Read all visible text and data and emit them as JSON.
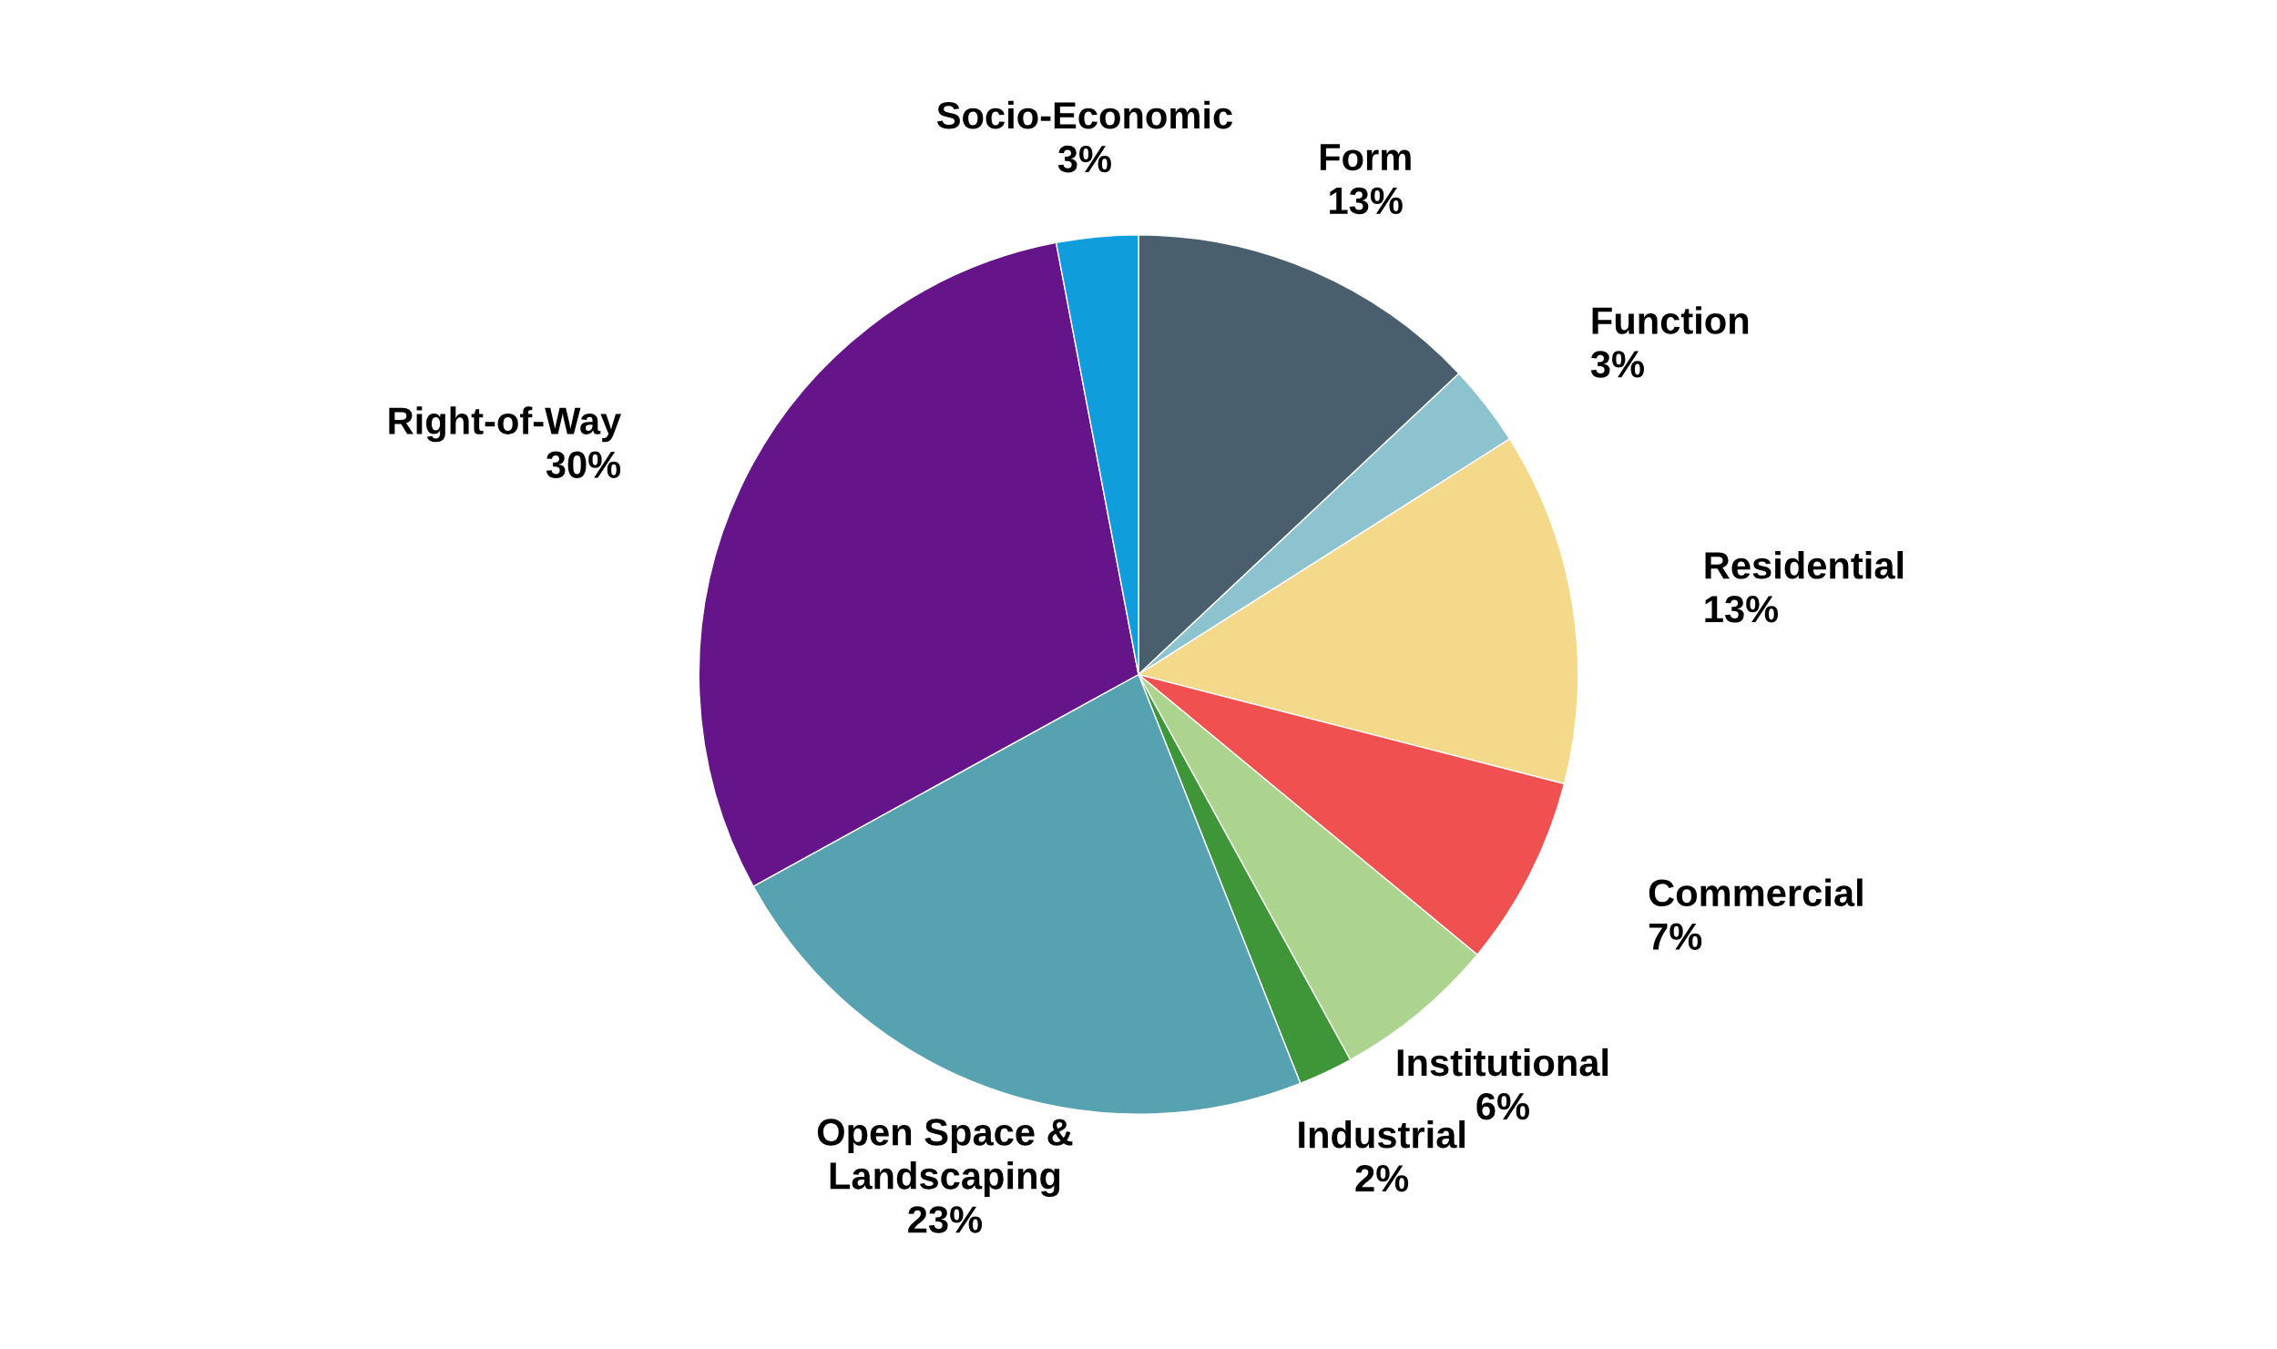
{
  "chart_data": {
    "type": "pie",
    "categories": [
      "Form",
      "Function",
      "Residential",
      "Commercial",
      "Institutional",
      "Industrial",
      "Open Space &\nLandscaping",
      "Right-of-Way",
      "Socio-Economic"
    ],
    "values": [
      13,
      3,
      13,
      7,
      6,
      2,
      23,
      30,
      3
    ],
    "value_labels": [
      "13%",
      "3%",
      "13%",
      "7%",
      "6%",
      "2%",
      "23%",
      "30%",
      "3%"
    ],
    "colors": [
      "#4a5f6e",
      "#8cc3cf",
      "#f5d98a",
      "#f05050",
      "#acd48e",
      "#3f9638",
      "#56a2b0",
      "#661489",
      "#0f9edb"
    ],
    "legend": false
  }
}
